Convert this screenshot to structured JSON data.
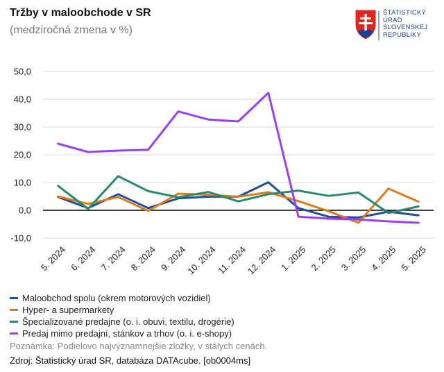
{
  "header": {
    "title": "Tržby v maloobchode v SR",
    "subtitle": "(medziročná zmena v %)"
  },
  "logo": {
    "lines": [
      "ŠTATISTICKÝ",
      "ÚRAD",
      "SLOVENSKEJ",
      "REPUBLIKY"
    ],
    "icon": "slovak-coat-of-arms-icon"
  },
  "footer": {
    "note": "Poznámka: Podielovo najvýznamnejšie zložky, v stálych cenách.",
    "source": "Zdroj: Štatistický úrad SR, databáza DATAcube. [ob0004ms]"
  },
  "chart_data": {
    "type": "line",
    "title": "Tržby v maloobchode v SR",
    "subtitle": "(medziročná zmena v %)",
    "categories": [
      "5. 2024",
      "6. 2024",
      "7. 2024",
      "8. 2024",
      "9. 2024",
      "10. 2024",
      "11. 2024",
      "12. 2024",
      "1. 2025",
      "2. 2025",
      "3. 2025",
      "4. 2025",
      "5. 2025"
    ],
    "ylim": [
      -10,
      50
    ],
    "yticks": [
      -10,
      0,
      10,
      20,
      30,
      40,
      50
    ],
    "ytick_labels": [
      "-10,0",
      "0,0",
      "10,0",
      "20,0",
      "30,0",
      "40,0",
      "50,0"
    ],
    "grid": true,
    "legend_position": "bottom",
    "series": [
      {
        "name": "Maloobchod spolu (okrem motorových vozidiel)",
        "color": "#1f4e9c",
        "values": [
          4.8,
          0.8,
          5.8,
          0.8,
          4.3,
          4.9,
          4.9,
          10.1,
          0.8,
          -2.3,
          -2.6,
          -0.5,
          -1.8
        ]
      },
      {
        "name": "Hyper- a supermarkety",
        "color": "#e07b17",
        "values": [
          5.0,
          2.3,
          4.8,
          -0.2,
          6.0,
          5.6,
          4.9,
          6.5,
          3.3,
          -0.3,
          -4.5,
          7.8,
          3.1
        ]
      },
      {
        "name": "Špecializované predajne (o. i. obuvi, textilu, drogérie)",
        "color": "#2a8a6e",
        "values": [
          8.8,
          0.5,
          12.3,
          6.9,
          4.7,
          6.6,
          3.2,
          5.8,
          7.1,
          5.2,
          6.4,
          -1.0,
          1.4
        ]
      },
      {
        "name": "Predaj mimo predajní, stánkov a trhov (o. i. e-shopy)",
        "color": "#9b3ff0",
        "values": [
          24.0,
          21.0,
          21.5,
          21.8,
          35.6,
          32.7,
          32.0,
          42.3,
          -2.3,
          -3.0,
          -3.3,
          -4.0,
          -4.5
        ]
      }
    ]
  }
}
